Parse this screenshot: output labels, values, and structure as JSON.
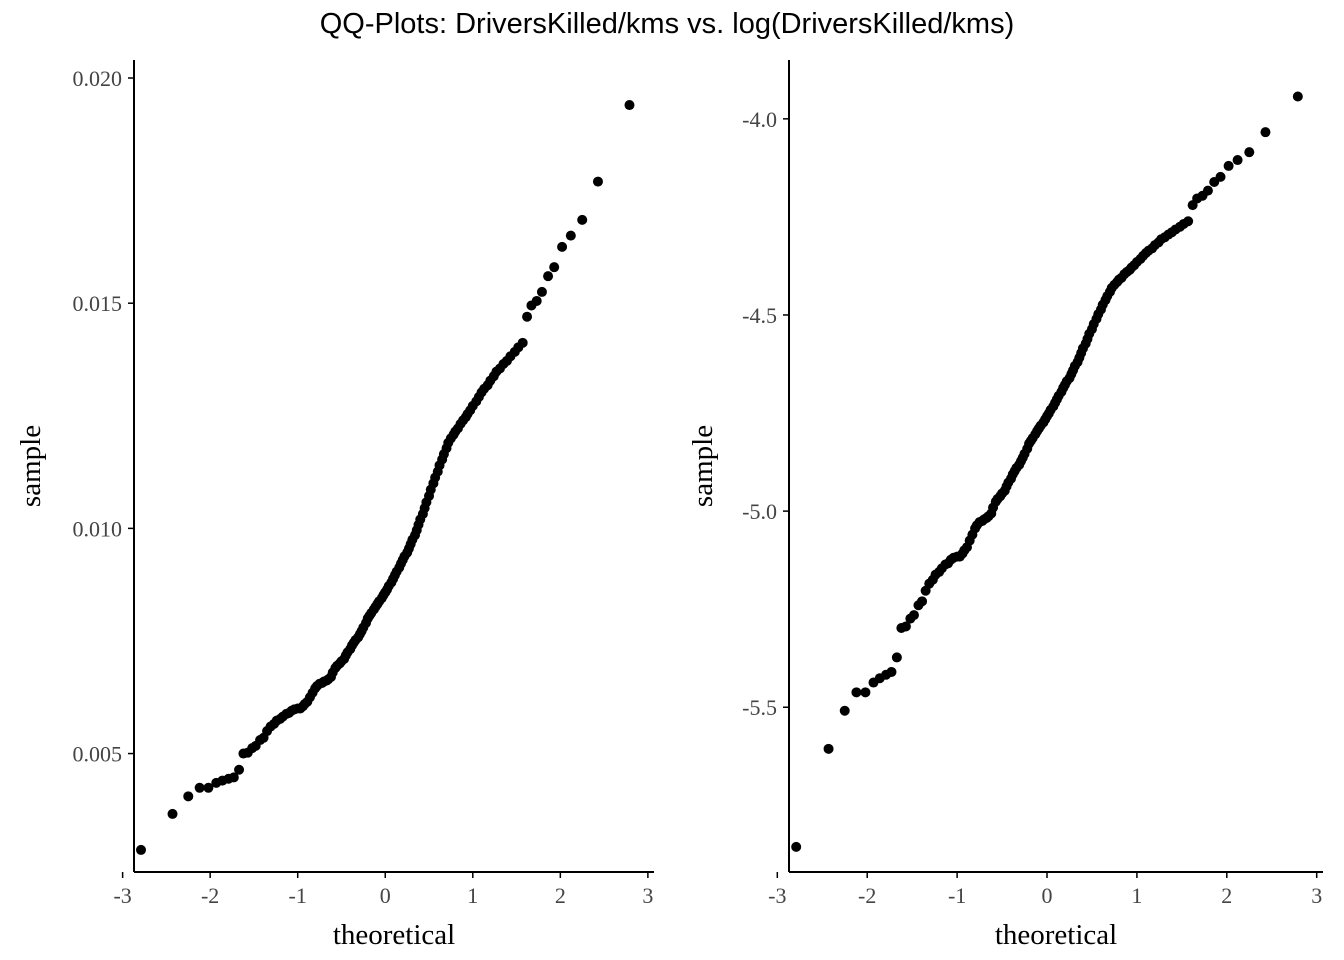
{
  "title": "QQ-Plots: DriversKilled/kms vs. log(DriversKilled/kms)",
  "chart_data": [
    {
      "type": "scatter",
      "title": "",
      "xlabel": "theoretical",
      "ylabel": "sample",
      "xlim": [
        -2.87,
        3.07
      ],
      "ylim": [
        0.00237,
        0.0204
      ],
      "x_ticks": [
        -3,
        -2,
        -1,
        0,
        1,
        2,
        3
      ],
      "x_tick_labels": [
        "-3",
        "-2",
        "-1",
        "0",
        "1",
        "2",
        "3"
      ],
      "y_ticks": [
        0.005,
        0.01,
        0.015,
        0.02
      ],
      "y_tick_labels": [
        "0.005",
        "0.010",
        "0.015",
        "0.020"
      ],
      "grid": false,
      "points": [
        [
          -2.79,
          0.00286
        ],
        [
          -2.43,
          0.00366
        ],
        [
          -2.25,
          0.00405
        ],
        [
          -2.12,
          0.00424
        ],
        [
          -2.02,
          0.00424
        ],
        [
          -1.93,
          0.00435
        ],
        [
          -1.86,
          0.0044
        ],
        [
          -1.79,
          0.00444
        ],
        [
          -1.73,
          0.00447
        ],
        [
          -1.67,
          0.00464
        ],
        [
          -1.62,
          0.005
        ],
        [
          -1.57,
          0.00502
        ],
        [
          -1.52,
          0.00512
        ],
        [
          -1.48,
          0.00517
        ],
        [
          -1.43,
          0.0053
        ],
        [
          -1.39,
          0.00535
        ],
        [
          -1.35,
          0.0055
        ],
        [
          -1.31,
          0.0056
        ],
        [
          -1.27,
          0.00566
        ],
        [
          -1.24,
          0.00573
        ],
        [
          -1.2,
          0.00577
        ],
        [
          -1.17,
          0.00582
        ],
        [
          -1.13,
          0.00588
        ],
        [
          -1.1,
          0.0059
        ],
        [
          -1.07,
          0.00595
        ],
        [
          -1.04,
          0.00598
        ],
        [
          -1.0,
          0.006
        ],
        [
          -0.97,
          0.006
        ],
        [
          -0.94,
          0.00605
        ],
        [
          -0.92,
          0.0061
        ],
        [
          -0.89,
          0.00615
        ],
        [
          -0.86,
          0.00625
        ],
        [
          -0.83,
          0.00635
        ],
        [
          -0.8,
          0.00645
        ],
        [
          -0.78,
          0.0065
        ],
        [
          -0.75,
          0.00655
        ],
        [
          -0.72,
          0.00657
        ],
        [
          -0.7,
          0.0066
        ],
        [
          -0.67,
          0.00662
        ],
        [
          -0.65,
          0.00665
        ],
        [
          -0.62,
          0.0067
        ],
        [
          -0.6,
          0.0068
        ],
        [
          -0.57,
          0.0069
        ],
        [
          -0.55,
          0.00695
        ],
        [
          -0.52,
          0.007
        ],
        [
          -0.5,
          0.00705
        ],
        [
          -0.47,
          0.0071
        ],
        [
          -0.45,
          0.00718
        ],
        [
          -0.43,
          0.00725
        ],
        [
          -0.4,
          0.00732
        ],
        [
          -0.38,
          0.0074
        ],
        [
          -0.36,
          0.00746
        ],
        [
          -0.34,
          0.00752
        ],
        [
          -0.31,
          0.00758
        ],
        [
          -0.29,
          0.00765
        ],
        [
          -0.27,
          0.00772
        ],
        [
          -0.25,
          0.0078
        ],
        [
          -0.22,
          0.0079
        ],
        [
          -0.2,
          0.008
        ],
        [
          -0.18,
          0.00806
        ],
        [
          -0.16,
          0.00812
        ],
        [
          -0.13,
          0.0082
        ],
        [
          -0.11,
          0.00826
        ],
        [
          -0.09,
          0.00832
        ],
        [
          -0.07,
          0.00838
        ],
        [
          -0.04,
          0.00845
        ],
        [
          -0.02,
          0.00852
        ],
        [
          0.0,
          0.00858
        ],
        [
          0.02,
          0.00864
        ],
        [
          0.04,
          0.00872
        ],
        [
          0.07,
          0.0088
        ],
        [
          0.09,
          0.00888
        ],
        [
          0.11,
          0.00896
        ],
        [
          0.13,
          0.00904
        ],
        [
          0.16,
          0.00913
        ],
        [
          0.18,
          0.00922
        ],
        [
          0.2,
          0.0093
        ],
        [
          0.22,
          0.00938
        ],
        [
          0.25,
          0.00946
        ],
        [
          0.27,
          0.00955
        ],
        [
          0.29,
          0.00965
        ],
        [
          0.31,
          0.00975
        ],
        [
          0.34,
          0.00985
        ],
        [
          0.36,
          0.00996
        ],
        [
          0.38,
          0.01008
        ],
        [
          0.4,
          0.0102
        ],
        [
          0.43,
          0.01032
        ],
        [
          0.45,
          0.01045
        ],
        [
          0.47,
          0.01058
        ],
        [
          0.5,
          0.01072
        ],
        [
          0.52,
          0.01086
        ],
        [
          0.55,
          0.011
        ],
        [
          0.57,
          0.01113
        ],
        [
          0.6,
          0.01126
        ],
        [
          0.62,
          0.0114
        ],
        [
          0.65,
          0.01153
        ],
        [
          0.67,
          0.01165
        ],
        [
          0.7,
          0.01178
        ],
        [
          0.72,
          0.0119
        ],
        [
          0.75,
          0.012
        ],
        [
          0.78,
          0.01208
        ],
        [
          0.8,
          0.01215
        ],
        [
          0.83,
          0.01222
        ],
        [
          0.86,
          0.01232
        ],
        [
          0.89,
          0.0124
        ],
        [
          0.92,
          0.01247
        ],
        [
          0.94,
          0.01254
        ],
        [
          0.97,
          0.01262
        ],
        [
          1.0,
          0.01272
        ],
        [
          1.04,
          0.01282
        ],
        [
          1.07,
          0.01292
        ],
        [
          1.1,
          0.01302
        ],
        [
          1.13,
          0.0131
        ],
        [
          1.17,
          0.01318
        ],
        [
          1.2,
          0.01328
        ],
        [
          1.24,
          0.01338
        ],
        [
          1.27,
          0.01348
        ],
        [
          1.31,
          0.01355
        ],
        [
          1.35,
          0.01365
        ],
        [
          1.39,
          0.01372
        ],
        [
          1.43,
          0.01382
        ],
        [
          1.48,
          0.01392
        ],
        [
          1.52,
          0.01402
        ],
        [
          1.57,
          0.01412
        ],
        [
          1.62,
          0.0147
        ],
        [
          1.67,
          0.01495
        ],
        [
          1.73,
          0.01505
        ],
        [
          1.79,
          0.01525
        ],
        [
          1.86,
          0.0156
        ],
        [
          1.93,
          0.0158
        ],
        [
          2.02,
          0.01625
        ],
        [
          2.12,
          0.0165
        ],
        [
          2.25,
          0.01685
        ],
        [
          2.43,
          0.0177
        ],
        [
          2.79,
          0.0194
        ]
      ]
    },
    {
      "type": "scatter",
      "title": "",
      "xlabel": "theoretical",
      "ylabel": "sample",
      "xlim": [
        -2.87,
        3.07
      ],
      "ylim": [
        -5.92,
        -3.85
      ],
      "x_ticks": [
        -3,
        -2,
        -1,
        0,
        1,
        2,
        3
      ],
      "x_tick_labels": [
        "-3",
        "-2",
        "-1",
        "0",
        "1",
        "2",
        "3"
      ],
      "y_ticks": [
        -5.5,
        -5.0,
        -4.5,
        -4.0
      ],
      "y_tick_labels": [
        "-5.5",
        "-5.0",
        "-4.5",
        "-4.0"
      ],
      "grid": false,
      "points": [
        [
          -2.79,
          -5.856
        ],
        [
          -2.43,
          -5.606
        ],
        [
          -2.25,
          -5.509
        ],
        [
          -2.12,
          -5.462
        ],
        [
          -2.02,
          -5.462
        ],
        [
          -1.93,
          -5.437
        ],
        [
          -1.86,
          -5.426
        ],
        [
          -1.79,
          -5.417
        ],
        [
          -1.73,
          -5.41
        ],
        [
          -1.67,
          -5.373
        ],
        [
          -1.62,
          -5.298
        ],
        [
          -1.57,
          -5.294
        ],
        [
          -1.52,
          -5.274
        ],
        [
          -1.48,
          -5.265
        ],
        [
          -1.43,
          -5.24
        ],
        [
          -1.39,
          -5.23
        ],
        [
          -1.35,
          -5.203
        ],
        [
          -1.31,
          -5.185
        ],
        [
          -1.27,
          -5.175
        ],
        [
          -1.24,
          -5.162
        ],
        [
          -1.2,
          -5.155
        ],
        [
          -1.17,
          -5.146
        ],
        [
          -1.13,
          -5.136
        ],
        [
          -1.1,
          -5.133
        ],
        [
          -1.07,
          -5.124
        ],
        [
          -1.04,
          -5.119
        ],
        [
          -1.0,
          -5.116
        ],
        [
          -0.97,
          -5.116
        ],
        [
          -0.94,
          -5.108
        ],
        [
          -0.92,
          -5.1
        ],
        [
          -0.89,
          -5.092
        ],
        [
          -0.86,
          -5.075
        ],
        [
          -0.83,
          -5.06
        ],
        [
          -0.8,
          -5.044
        ],
        [
          -0.78,
          -5.036
        ],
        [
          -0.75,
          -5.028
        ],
        [
          -0.72,
          -5.025
        ],
        [
          -0.7,
          -5.021
        ],
        [
          -0.67,
          -5.017
        ],
        [
          -0.65,
          -5.013
        ],
        [
          -0.62,
          -5.006
        ],
        [
          -0.6,
          -4.991
        ],
        [
          -0.57,
          -4.976
        ],
        [
          -0.55,
          -4.969
        ],
        [
          -0.52,
          -4.962
        ],
        [
          -0.5,
          -4.955
        ],
        [
          -0.47,
          -4.948
        ],
        [
          -0.45,
          -4.937
        ],
        [
          -0.43,
          -4.927
        ],
        [
          -0.4,
          -4.917
        ],
        [
          -0.38,
          -4.906
        ],
        [
          -0.36,
          -4.898
        ],
        [
          -0.34,
          -4.89
        ],
        [
          -0.31,
          -4.882
        ],
        [
          -0.29,
          -4.873
        ],
        [
          -0.27,
          -4.864
        ],
        [
          -0.25,
          -4.854
        ],
        [
          -0.22,
          -4.841
        ],
        [
          -0.2,
          -4.828
        ],
        [
          -0.18,
          -4.821
        ],
        [
          -0.16,
          -4.814
        ],
        [
          -0.13,
          -4.804
        ],
        [
          -0.11,
          -4.796
        ],
        [
          -0.09,
          -4.789
        ],
        [
          -0.07,
          -4.782
        ],
        [
          -0.04,
          -4.774
        ],
        [
          -0.02,
          -4.766
        ],
        [
          0.0,
          -4.758
        ],
        [
          0.02,
          -4.751
        ],
        [
          0.04,
          -4.742
        ],
        [
          0.07,
          -4.733
        ],
        [
          0.09,
          -4.724
        ],
        [
          0.11,
          -4.715
        ],
        [
          0.13,
          -4.706
        ],
        [
          0.16,
          -4.696
        ],
        [
          0.18,
          -4.686
        ],
        [
          0.2,
          -4.678
        ],
        [
          0.22,
          -4.669
        ],
        [
          0.25,
          -4.661
        ],
        [
          0.27,
          -4.651
        ],
        [
          0.29,
          -4.641
        ],
        [
          0.31,
          -4.63
        ],
        [
          0.34,
          -4.62
        ],
        [
          0.36,
          -4.609
        ],
        [
          0.38,
          -4.597
        ],
        [
          0.4,
          -4.585
        ],
        [
          0.43,
          -4.573
        ],
        [
          0.45,
          -4.561
        ],
        [
          0.47,
          -4.548
        ],
        [
          0.5,
          -4.536
        ],
        [
          0.52,
          -4.523
        ],
        [
          0.55,
          -4.51
        ],
        [
          0.57,
          -4.498
        ],
        [
          0.6,
          -4.486
        ],
        [
          0.62,
          -4.474
        ],
        [
          0.65,
          -4.462
        ],
        [
          0.67,
          -4.452
        ],
        [
          0.7,
          -4.441
        ],
        [
          0.72,
          -4.431
        ],
        [
          0.75,
          -4.423
        ],
        [
          0.78,
          -4.416
        ],
        [
          0.8,
          -4.41
        ],
        [
          0.83,
          -4.405
        ],
        [
          0.86,
          -4.396
        ],
        [
          0.89,
          -4.39
        ],
        [
          0.92,
          -4.385
        ],
        [
          0.94,
          -4.379
        ],
        [
          0.97,
          -4.373
        ],
        [
          1.0,
          -4.365
        ],
        [
          1.04,
          -4.357
        ],
        [
          1.07,
          -4.349
        ],
        [
          1.1,
          -4.342
        ],
        [
          1.13,
          -4.336
        ],
        [
          1.17,
          -4.33
        ],
        [
          1.2,
          -4.322
        ],
        [
          1.24,
          -4.315
        ],
        [
          1.27,
          -4.307
        ],
        [
          1.31,
          -4.302
        ],
        [
          1.35,
          -4.295
        ],
        [
          1.39,
          -4.289
        ],
        [
          1.43,
          -4.282
        ],
        [
          1.48,
          -4.275
        ],
        [
          1.52,
          -4.268
        ],
        [
          1.57,
          -4.261
        ],
        [
          1.62,
          -4.22
        ],
        [
          1.67,
          -4.203
        ],
        [
          1.73,
          -4.196
        ],
        [
          1.79,
          -4.183
        ],
        [
          1.86,
          -4.161
        ],
        [
          1.93,
          -4.148
        ],
        [
          2.02,
          -4.12
        ],
        [
          2.12,
          -4.105
        ],
        [
          2.25,
          -4.085
        ],
        [
          2.43,
          -4.034
        ],
        [
          2.79,
          -3.943
        ]
      ]
    }
  ]
}
